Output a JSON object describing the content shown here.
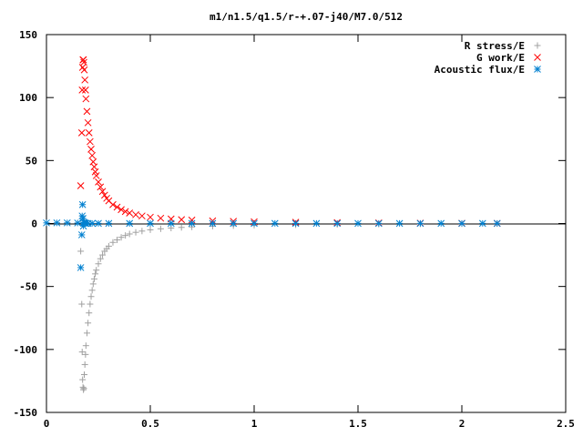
{
  "chart_data": {
    "type": "scatter",
    "title": "m1/n1.5/q1.5/r-+.07-j40/M7.0/512",
    "xlabel": "",
    "ylabel": "",
    "xlim": [
      0,
      2.5
    ],
    "ylim": [
      -150,
      150
    ],
    "x_ticks": [
      "0",
      "0.5",
      "1",
      "1.5",
      "2",
      "2.5"
    ],
    "x_tick_values": [
      0,
      0.5,
      1,
      1.5,
      2,
      2.5
    ],
    "y_ticks": [
      "150",
      "100",
      "50",
      "0",
      "-50",
      "-100",
      "-150"
    ],
    "y_tick_values": [
      150,
      100,
      50,
      0,
      -50,
      -100,
      -150
    ],
    "grid": false,
    "legend_position": "top-right",
    "series": [
      {
        "name": "R stress/E",
        "marker": "plus",
        "color": "#a0a0a0",
        "x": [
          0.165,
          0.17,
          0.172,
          0.174,
          0.176,
          0.178,
          0.18,
          0.182,
          0.185,
          0.188,
          0.19,
          0.195,
          0.2,
          0.205,
          0.21,
          0.215,
          0.22,
          0.225,
          0.23,
          0.235,
          0.24,
          0.25,
          0.26,
          0.27,
          0.28,
          0.29,
          0.3,
          0.32,
          0.34,
          0.36,
          0.38,
          0.4,
          0.43,
          0.46,
          0.5,
          0.55,
          0.6,
          0.65,
          0.7,
          0.8,
          0.9,
          1.0,
          1.2,
          1.4,
          1.6,
          1.8,
          2.0,
          2.17
        ],
        "y": [
          -22,
          -64,
          -102,
          -124,
          -130,
          -132,
          -131,
          -120,
          -112,
          -104,
          -97,
          -87,
          -79,
          -71,
          -64,
          -58,
          -53,
          -48,
          -44,
          -40,
          -37,
          -32,
          -28,
          -25,
          -22,
          -20,
          -18,
          -15,
          -13,
          -11,
          -9.5,
          -8.3,
          -7,
          -6,
          -5,
          -4.2,
          -3.6,
          -3.1,
          -2.7,
          -2.1,
          -1.7,
          -1.4,
          -1.0,
          -0.7,
          -0.5,
          -0.3,
          -0.2,
          -0.1
        ]
      },
      {
        "name": "G work/E",
        "marker": "cross",
        "color": "#ff0000",
        "x": [
          0.165,
          0.17,
          0.172,
          0.174,
          0.176,
          0.178,
          0.18,
          0.182,
          0.185,
          0.188,
          0.19,
          0.195,
          0.2,
          0.205,
          0.21,
          0.215,
          0.22,
          0.225,
          0.23,
          0.235,
          0.24,
          0.25,
          0.26,
          0.27,
          0.28,
          0.29,
          0.3,
          0.32,
          0.34,
          0.36,
          0.38,
          0.4,
          0.43,
          0.46,
          0.5,
          0.55,
          0.6,
          0.65,
          0.7,
          0.8,
          0.9,
          1.0,
          1.2,
          1.4,
          1.6,
          1.8,
          2.0,
          2.17
        ],
        "y": [
          30,
          72,
          106,
          124,
          130,
          130,
          128,
          122,
          114,
          106,
          99,
          89,
          80,
          72,
          65,
          59,
          54,
          49,
          45,
          41,
          38,
          33,
          29,
          25.5,
          22.5,
          20,
          18,
          15,
          13,
          11,
          9.5,
          8.3,
          7,
          6,
          5,
          4.2,
          3.6,
          3.1,
          2.7,
          2.1,
          1.7,
          1.4,
          1.0,
          0.7,
          0.5,
          0.3,
          0.2,
          0.1
        ]
      },
      {
        "name": "Acoustic flux/E",
        "marker": "star",
        "color": "#0080d0",
        "x": [
          0.0,
          0.05,
          0.1,
          0.15,
          0.165,
          0.17,
          0.172,
          0.174,
          0.176,
          0.178,
          0.18,
          0.182,
          0.185,
          0.19,
          0.2,
          0.22,
          0.25,
          0.3,
          0.4,
          0.5,
          0.6,
          0.7,
          0.8,
          0.9,
          1.0,
          1.1,
          1.2,
          1.3,
          1.4,
          1.5,
          1.6,
          1.7,
          1.8,
          1.9,
          2.0,
          2.1,
          2.17
        ],
        "y": [
          0.5,
          0.5,
          0.5,
          0.4,
          -35,
          -9,
          6,
          15,
          4,
          -2,
          1,
          0.5,
          0.3,
          0.2,
          0.1,
          0.1,
          0.1,
          0.1,
          0.1,
          0.1,
          0.1,
          0.1,
          0.1,
          0.1,
          0.1,
          0.1,
          0.1,
          0.1,
          0.1,
          0.1,
          0.1,
          0.1,
          0.1,
          0.1,
          0.1,
          0.1,
          0.1
        ]
      }
    ]
  }
}
